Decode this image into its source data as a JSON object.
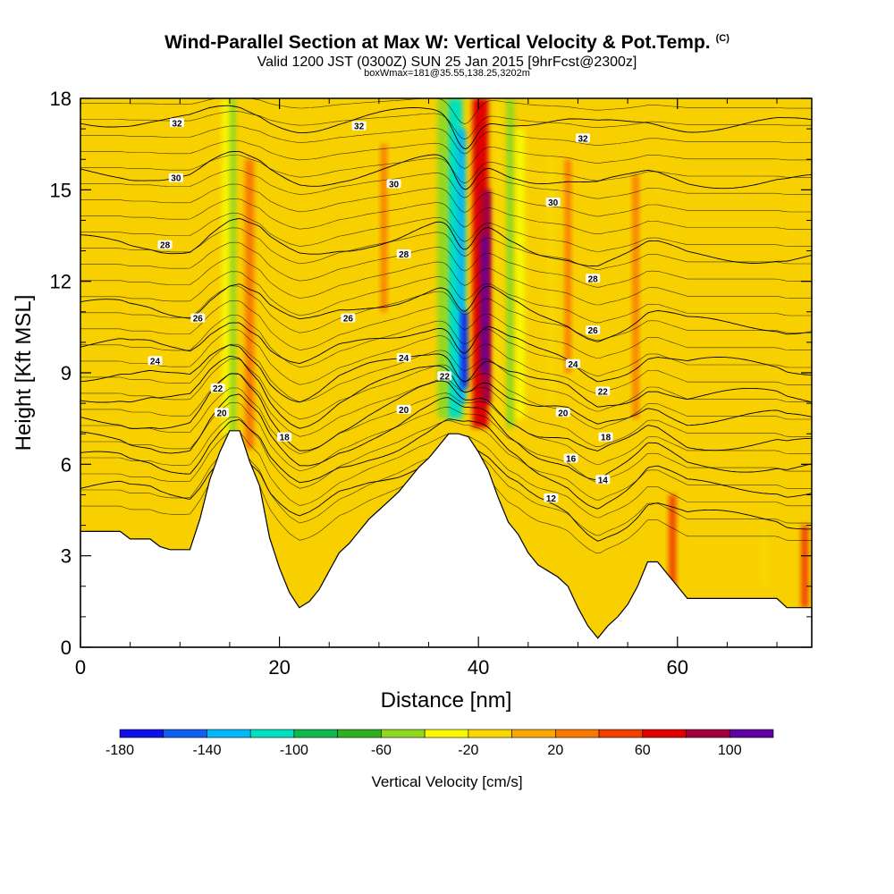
{
  "chart_data": {
    "type": "heatmap",
    "title": "Wind-Parallel Section at Max W: Vertical Velocity & Pot.Temp.",
    "title_tag": "(C)",
    "subtitle": "Valid 1200 JST (0300Z) SUN 25 Jan 2015 [9hrFcst@2300z]",
    "subtitle2": "boxWmax=181@35.55,138.25,3202m",
    "xlabel": "Distance [nm]",
    "ylabel": "Height [Kft MSL]",
    "xlim": [
      0,
      73.5
    ],
    "ylim": [
      0,
      18
    ],
    "x_ticks": [
      0,
      20,
      40,
      60
    ],
    "y_ticks": [
      0,
      3,
      6,
      9,
      12,
      15,
      18
    ],
    "colorbar": {
      "label": "Vertical Velocity [cm/s]",
      "tick_values": [
        -180,
        -140,
        -100,
        -60,
        -20,
        20,
        60,
        100
      ],
      "bounds": [
        -180,
        120
      ],
      "colors": [
        "#1010e8",
        "#1060f0",
        "#00b8f8",
        "#00e0c0",
        "#10b850",
        "#30b020",
        "#90d820",
        "#f8f800",
        "#f8d800",
        "#f8a800",
        "#f87800",
        "#f04000",
        "#e00000",
        "#a00040",
        "#6000a0"
      ]
    },
    "terrain": {
      "x": [
        0,
        4,
        5,
        6,
        7,
        8,
        9,
        10,
        11,
        12,
        13,
        14,
        15,
        16,
        17,
        18,
        19,
        20,
        21,
        22,
        23,
        24,
        25,
        26,
        27,
        28,
        29,
        30,
        31,
        32,
        33,
        34,
        35,
        36,
        37,
        38,
        39,
        40,
        41,
        42,
        43,
        44,
        45,
        46,
        47,
        48,
        49,
        50,
        51,
        52,
        53,
        54,
        55,
        56,
        57,
        58,
        59,
        60,
        61,
        62,
        63,
        64,
        65,
        66,
        67,
        68,
        69,
        70,
        71,
        72,
        73.5
      ],
      "height": [
        3.8,
        3.8,
        3.55,
        3.55,
        3.55,
        3.3,
        3.2,
        3.2,
        3.2,
        4.2,
        5.5,
        6.4,
        7.1,
        7.1,
        6.1,
        5.3,
        3.6,
        2.6,
        1.8,
        1.3,
        1.5,
        1.9,
        2.5,
        3.1,
        3.4,
        3.8,
        4.2,
        4.5,
        4.8,
        5.1,
        5.5,
        5.9,
        6.2,
        6.6,
        7.0,
        7.0,
        6.9,
        6.4,
        5.8,
        4.9,
        4.1,
        3.7,
        3.1,
        2.7,
        2.5,
        2.3,
        2.0,
        1.3,
        0.7,
        0.3,
        0.7,
        1.0,
        1.4,
        2.0,
        2.8,
        2.8,
        2.4,
        2.0,
        1.6,
        1.6,
        1.6,
        1.6,
        1.6,
        1.6,
        1.6,
        1.6,
        1.6,
        1.6,
        1.3,
        1.3,
        1.3
      ]
    },
    "w_features": [
      {
        "x": 15.2,
        "width": 0.8,
        "y0": 6.5,
        "y1": 18,
        "w": -55
      },
      {
        "x": 14.6,
        "width": 0.7,
        "y0": 7,
        "y1": 18,
        "w": -30
      },
      {
        "x": 17.0,
        "width": 0.9,
        "y0": 6.5,
        "y1": 16,
        "w": 30
      },
      {
        "x": 30.5,
        "width": 0.6,
        "y0": 11,
        "y1": 16.5,
        "w": 25
      },
      {
        "x": 37.6,
        "width": 1.6,
        "y0": 7.5,
        "y1": 18,
        "w": -110
      },
      {
        "x": 38.3,
        "width": 0.8,
        "y0": 8,
        "y1": 17,
        "w": -140
      },
      {
        "x": 38.6,
        "width": 0.6,
        "y0": 8.5,
        "y1": 11,
        "w": -175
      },
      {
        "x": 36.4,
        "width": 1.0,
        "y0": 7.5,
        "y1": 18,
        "w": -50
      },
      {
        "x": 40.2,
        "width": 1.6,
        "y0": 7.2,
        "y1": 18,
        "w": 70
      },
      {
        "x": 40.8,
        "width": 1.0,
        "y0": 8,
        "y1": 15,
        "w": 95
      },
      {
        "x": 40.6,
        "width": 0.6,
        "y0": 9,
        "y1": 13.5,
        "w": 115
      },
      {
        "x": 43.2,
        "width": 0.8,
        "y0": 7.2,
        "y1": 18,
        "w": -60
      },
      {
        "x": 44.2,
        "width": 0.9,
        "y0": 7.5,
        "y1": 17,
        "w": -40
      },
      {
        "x": 42.0,
        "width": 0.8,
        "y0": 7.2,
        "y1": 18,
        "w": -20
      },
      {
        "x": 47.3,
        "width": 0.7,
        "y0": 8,
        "y1": 16,
        "w": -20
      },
      {
        "x": 49.0,
        "width": 0.6,
        "y0": 9,
        "y1": 16,
        "w": 30
      },
      {
        "x": 55.8,
        "width": 0.6,
        "y0": 7.5,
        "y1": 15.5,
        "w": 30
      },
      {
        "x": 59.5,
        "width": 0.7,
        "y0": 1.6,
        "y1": 5,
        "w": 40
      },
      {
        "x": 68.7,
        "width": 0.6,
        "y0": 2.0,
        "y1": 3.8,
        "w": -20
      },
      {
        "x": 72.8,
        "width": 0.7,
        "y0": 1.3,
        "y1": 4,
        "w": 40
      }
    ],
    "theta_levels": [
      {
        "value": 12,
        "base": 4.6
      },
      {
        "value": 14,
        "base": 5.6
      },
      {
        "value": 16,
        "base": 6.3
      },
      {
        "value": 18,
        "base": 7.0
      },
      {
        "value": 20,
        "base": 7.8
      },
      {
        "value": 22,
        "base": 8.5
      },
      {
        "value": 24,
        "base": 9.5
      },
      {
        "value": 26,
        "base": 10.8
      },
      {
        "value": 28,
        "base": 13.0
      },
      {
        "value": 30,
        "base": 15.4
      },
      {
        "value": 32,
        "base": 17.2
      }
    ],
    "contour_labels": [
      {
        "text": "32",
        "x": 9.7,
        "y": 17.2
      },
      {
        "text": "32",
        "x": 28.0,
        "y": 17.1
      },
      {
        "text": "32",
        "x": 50.5,
        "y": 16.7
      },
      {
        "text": "30",
        "x": 9.6,
        "y": 15.4
      },
      {
        "text": "30",
        "x": 31.5,
        "y": 15.2
      },
      {
        "text": "30",
        "x": 47.5,
        "y": 14.6
      },
      {
        "text": "28",
        "x": 8.5,
        "y": 13.2
      },
      {
        "text": "28",
        "x": 32.5,
        "y": 12.9
      },
      {
        "text": "28",
        "x": 51.5,
        "y": 12.1
      },
      {
        "text": "26",
        "x": 11.8,
        "y": 10.8
      },
      {
        "text": "26",
        "x": 26.9,
        "y": 10.8
      },
      {
        "text": "26",
        "x": 51.5,
        "y": 10.4
      },
      {
        "text": "24",
        "x": 7.5,
        "y": 9.4
      },
      {
        "text": "24",
        "x": 32.5,
        "y": 9.5
      },
      {
        "text": "24",
        "x": 49.5,
        "y": 9.3
      },
      {
        "text": "22",
        "x": 13.8,
        "y": 8.5
      },
      {
        "text": "22",
        "x": 36.6,
        "y": 8.9
      },
      {
        "text": "22",
        "x": 52.5,
        "y": 8.4
      },
      {
        "text": "20",
        "x": 14.2,
        "y": 7.7
      },
      {
        "text": "20",
        "x": 32.5,
        "y": 7.8
      },
      {
        "text": "20",
        "x": 48.5,
        "y": 7.7
      },
      {
        "text": "18",
        "x": 20.5,
        "y": 6.9
      },
      {
        "text": "18",
        "x": 52.8,
        "y": 6.9
      },
      {
        "text": "16",
        "x": 49.3,
        "y": 6.2
      },
      {
        "text": "14",
        "x": 52.5,
        "y": 5.5
      },
      {
        "text": "12",
        "x": 47.3,
        "y": 4.9
      }
    ]
  }
}
